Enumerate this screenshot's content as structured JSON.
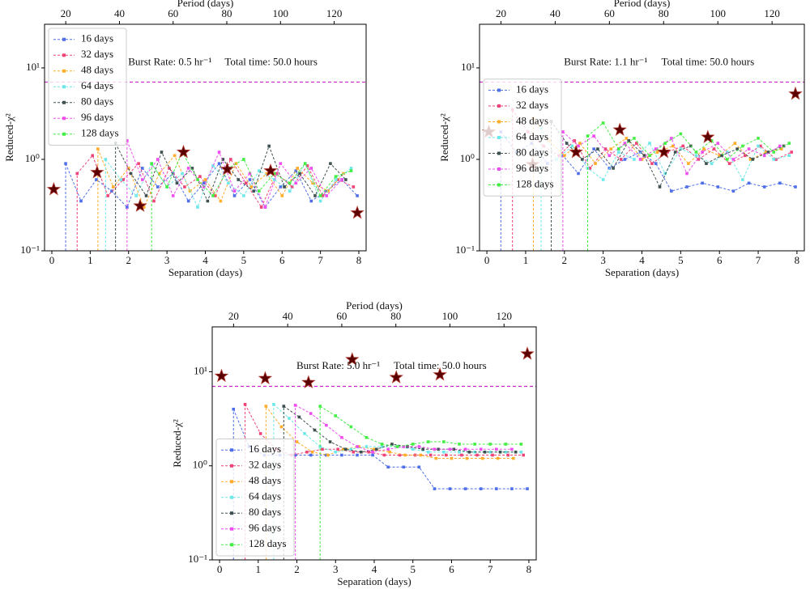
{
  "chart_data": [
    {
      "type": "line",
      "annotations": [
        "Burst Rate: 0.5 hr⁻¹",
        "Total time: 50.0 hours"
      ],
      "xlabel": "Separation (days)",
      "x2label": "Period (days)",
      "ylabel": "Reduced-χ²",
      "xlim": [
        -0.19,
        8.19
      ],
      "xticks": [
        0,
        1,
        2,
        3,
        4,
        5,
        6,
        7,
        8
      ],
      "x2lim": [
        12.1,
        131.9
      ],
      "x2ticks": [
        20,
        40,
        60,
        80,
        100,
        120
      ],
      "ylim": [
        0.1,
        30
      ],
      "yscale": "log",
      "yticks": [
        {
          "value": 0.1,
          "label": "10⁻¹"
        },
        {
          "value": 1,
          "label": "10⁰"
        },
        {
          "value": 10,
          "label": "10¹"
        }
      ],
      "legend": "upper left",
      "reference_line": {
        "value": 7,
        "color": "#cc22cc"
      },
      "markers": {
        "color": "#5a0000",
        "x": [
          0.05,
          1.18,
          2.3,
          3.43,
          4.57,
          5.7,
          7.96
        ],
        "values": [
          0.47,
          0.72,
          0.31,
          1.2,
          0.78,
          0.75,
          0.26
        ]
      },
      "series": [
        {
          "name": "16 days",
          "color": "#4f6fe8",
          "x": [
            0.36,
            0.76,
            1.16,
            1.56,
            1.96,
            2.36,
            2.76,
            3.16,
            3.56,
            3.96,
            4.36,
            4.76,
            5.16,
            5.56,
            5.96,
            6.36,
            6.76,
            7.16,
            7.56,
            7.96
          ],
          "values": [
            0.9,
            0.35,
            0.6,
            0.45,
            0.3,
            0.8,
            0.5,
            0.7,
            0.35,
            0.55,
            0.9,
            0.4,
            0.6,
            0.3,
            0.5,
            0.75,
            0.35,
            0.45,
            0.6,
            0.4
          ]
        },
        {
          "name": "32 days",
          "color": "#ee4477",
          "x": [
            0.66,
            1.06,
            1.46,
            1.86,
            2.26,
            2.66,
            3.06,
            3.46,
            3.86,
            4.26,
            4.66,
            5.06,
            5.46,
            5.86,
            6.26,
            6.66,
            7.06,
            7.46,
            7.86
          ],
          "values": [
            0.7,
            1.1,
            0.4,
            0.6,
            0.9,
            0.35,
            0.8,
            0.5,
            0.65,
            0.4,
            1.0,
            0.55,
            0.3,
            0.7,
            0.5,
            0.85,
            0.4,
            0.6,
            0.5
          ]
        },
        {
          "name": "48 days",
          "color": "#ffad2a",
          "x": [
            1.2,
            1.6,
            2.0,
            2.4,
            2.8,
            3.2,
            3.6,
            4.0,
            4.4,
            4.8,
            5.2,
            5.6,
            6.0,
            6.4,
            6.8,
            7.2,
            7.6
          ],
          "values": [
            1.3,
            0.5,
            0.8,
            0.3,
            0.7,
            1.1,
            0.45,
            0.6,
            0.35,
            0.9,
            0.5,
            0.7,
            0.4,
            0.8,
            0.55,
            0.45,
            0.7
          ]
        },
        {
          "name": "64 days",
          "color": "#6ee8e8",
          "x": [
            1.4,
            1.8,
            2.2,
            2.6,
            3.0,
            3.4,
            3.8,
            4.2,
            4.6,
            5.0,
            5.4,
            5.8,
            6.2,
            6.6,
            7.0,
            7.4,
            7.8
          ],
          "values": [
            1.0,
            0.6,
            0.4,
            0.9,
            0.5,
            0.7,
            0.3,
            0.85,
            0.55,
            0.4,
            0.75,
            0.6,
            0.45,
            0.9,
            0.35,
            0.6,
            0.8
          ]
        },
        {
          "name": "80 days",
          "color": "#3f5050",
          "x": [
            1.66,
            2.06,
            2.46,
            2.86,
            3.26,
            3.66,
            4.06,
            4.46,
            4.86,
            5.26,
            5.66,
            6.06,
            6.46,
            6.86,
            7.26,
            7.66
          ],
          "values": [
            1.5,
            0.7,
            0.4,
            1.2,
            0.55,
            0.8,
            0.35,
            1.0,
            0.6,
            0.45,
            1.4,
            0.5,
            0.7,
            0.4,
            0.9,
            0.6
          ]
        },
        {
          "name": "96 days",
          "color": "#ee4eee",
          "x": [
            1.96,
            2.36,
            2.76,
            3.16,
            3.56,
            3.96,
            4.36,
            4.76,
            5.16,
            5.56,
            5.96,
            6.36,
            6.76,
            7.16,
            7.56
          ],
          "values": [
            1.6,
            0.6,
            1.0,
            0.4,
            0.8,
            0.5,
            1.2,
            0.45,
            0.7,
            0.3,
            0.9,
            0.55,
            0.8,
            0.4,
            0.6
          ]
        },
        {
          "name": "128 days",
          "color": "#44ee44",
          "x": [
            2.6,
            3.0,
            3.4,
            3.8,
            4.2,
            4.6,
            5.0,
            5.4,
            5.8,
            6.2,
            6.6,
            7.0,
            7.4,
            7.8
          ],
          "values": [
            0.9,
            0.5,
            1.2,
            0.6,
            0.4,
            0.8,
            1.0,
            0.45,
            0.7,
            0.55,
            0.9,
            0.4,
            0.65,
            0.75
          ]
        }
      ]
    },
    {
      "type": "line",
      "annotations": [
        "Burst Rate: 1.1 hr⁻¹",
        "Total time: 50.0 hours"
      ],
      "xlabel": "Separation (days)",
      "x2label": "Period (days)",
      "ylabel": "Reduced-χ²",
      "xlim": [
        -0.19,
        8.19
      ],
      "xticks": [
        0,
        1,
        2,
        3,
        4,
        5,
        6,
        7,
        8
      ],
      "x2lim": [
        12.1,
        131.9
      ],
      "x2ticks": [
        20,
        40,
        60,
        80,
        100,
        120
      ],
      "ylim": [
        0.1,
        30
      ],
      "yscale": "log",
      "yticks": [
        {
          "value": 0.1,
          "label": "10⁻¹"
        },
        {
          "value": 1,
          "label": "10⁰"
        },
        {
          "value": 10,
          "label": "10¹"
        }
      ],
      "legend": "center left",
      "reference_line": {
        "value": 7,
        "color": "#cc22cc"
      },
      "markers": {
        "color": "#5a0000",
        "x": [
          0.05,
          1.18,
          2.3,
          3.43,
          4.57,
          5.7,
          7.96
        ],
        "values": [
          2.0,
          0.88,
          1.2,
          2.1,
          1.2,
          1.75,
          5.2
        ]
      },
      "series": [
        {
          "name": "16 days",
          "color": "#4f6fe8",
          "x": [
            0.36,
            0.76,
            1.16,
            1.56,
            1.96,
            2.36,
            2.76,
            3.16,
            3.56,
            3.96,
            4.36,
            4.76,
            5.16,
            5.56,
            5.96,
            6.36,
            6.76,
            7.16,
            7.56,
            7.96
          ],
          "values": [
            2.0,
            1.2,
            1.5,
            0.9,
            1.1,
            0.7,
            1.3,
            0.8,
            1.0,
            1.2,
            0.9,
            0.45,
            0.5,
            0.55,
            0.5,
            0.45,
            0.55,
            0.5,
            0.55,
            0.5
          ]
        },
        {
          "name": "32 days",
          "color": "#ee4477",
          "x": [
            0.66,
            1.06,
            1.46,
            1.86,
            2.26,
            2.66,
            3.06,
            3.46,
            3.86,
            4.26,
            4.66,
            5.06,
            5.46,
            5.86,
            6.26,
            6.66,
            7.06,
            7.46,
            7.86
          ],
          "values": [
            3.5,
            2.0,
            1.4,
            1.1,
            1.6,
            0.8,
            1.3,
            1.0,
            1.5,
            0.9,
            1.2,
            1.4,
            1.0,
            1.3,
            0.9,
            1.1,
            1.4,
            1.0,
            1.2
          ]
        },
        {
          "name": "48 days",
          "color": "#ffad2a",
          "x": [
            1.2,
            1.6,
            2.0,
            2.4,
            2.8,
            3.2,
            3.6,
            4.0,
            4.4,
            4.8,
            5.2,
            5.6,
            6.0,
            6.4,
            6.8,
            7.2,
            7.6
          ],
          "values": [
            2.8,
            1.6,
            1.1,
            1.5,
            0.9,
            1.3,
            1.7,
            1.0,
            1.2,
            1.4,
            0.9,
            1.3,
            1.1,
            1.5,
            1.0,
            1.2,
            1.3
          ]
        },
        {
          "name": "64 days",
          "color": "#6ee8e8",
          "x": [
            1.4,
            1.8,
            2.2,
            2.6,
            3.0,
            3.4,
            3.8,
            4.2,
            4.6,
            5.0,
            5.4,
            5.8,
            6.2,
            6.6,
            7.0,
            7.4,
            7.8
          ],
          "values": [
            2.2,
            1.0,
            1.4,
            0.8,
            0.6,
            1.2,
            1.0,
            1.5,
            0.7,
            1.3,
            1.1,
            0.9,
            1.2,
            0.6,
            1.4,
            1.0,
            1.1
          ]
        },
        {
          "name": "80 days",
          "color": "#3f5050",
          "x": [
            1.66,
            2.06,
            2.46,
            2.86,
            3.26,
            3.66,
            4.06,
            4.46,
            4.86,
            5.26,
            5.66,
            6.06,
            6.46,
            6.86,
            7.26,
            7.66
          ],
          "values": [
            2.6,
            1.5,
            1.0,
            1.3,
            0.8,
            1.6,
            1.1,
            0.5,
            1.2,
            1.4,
            0.9,
            1.1,
            1.3,
            1.0,
            1.2,
            1.4
          ]
        },
        {
          "name": "96 days",
          "color": "#ee4eee",
          "x": [
            1.96,
            2.36,
            2.76,
            3.16,
            3.56,
            3.96,
            4.36,
            4.76,
            5.16,
            5.56,
            5.96,
            6.36,
            6.76,
            7.16,
            7.56
          ],
          "values": [
            2.0,
            1.4,
            1.8,
            1.1,
            1.5,
            1.0,
            1.3,
            1.7,
            0.7,
            1.2,
            1.5,
            1.0,
            1.3,
            1.1,
            1.4
          ]
        },
        {
          "name": "128 days",
          "color": "#44ee44",
          "x": [
            2.6,
            3.0,
            3.4,
            3.8,
            4.2,
            4.6,
            5.0,
            5.4,
            5.8,
            6.2,
            6.6,
            7.0,
            7.4,
            7.8
          ],
          "values": [
            1.8,
            2.5,
            1.3,
            1.7,
            1.1,
            1.5,
            1.9,
            1.2,
            1.6,
            1.0,
            1.4,
            1.7,
            1.2,
            1.5
          ]
        }
      ]
    },
    {
      "type": "line",
      "annotations": [
        "Burst Rate: 5.0 hr⁻¹",
        "Total time: 50.0 hours"
      ],
      "xlabel": "Separation (days)",
      "x2label": "Period (days)",
      "ylabel": "Reduced-χ²",
      "xlim": [
        -0.19,
        8.19
      ],
      "xticks": [
        0,
        1,
        2,
        3,
        4,
        5,
        6,
        7,
        8
      ],
      "x2lim": [
        12.1,
        131.9
      ],
      "x2ticks": [
        20,
        40,
        60,
        80,
        100,
        120
      ],
      "ylim": [
        0.1,
        30
      ],
      "yscale": "log",
      "yticks": [
        {
          "value": 0.1,
          "label": "10⁻¹"
        },
        {
          "value": 1,
          "label": "10⁰"
        },
        {
          "value": 10,
          "label": "10¹"
        }
      ],
      "legend": "lower left",
      "reference_line": {
        "value": 7,
        "color": "#cc22cc"
      },
      "markers": {
        "color": "#5a0000",
        "x": [
          0.05,
          1.18,
          2.3,
          3.43,
          4.57,
          5.7,
          7.96
        ],
        "values": [
          9.0,
          8.5,
          7.7,
          13.5,
          8.7,
          9.3,
          15.5
        ]
      },
      "series": [
        {
          "name": "16 days",
          "color": "#4f6fe8",
          "x": [
            0.36,
            0.76,
            1.16,
            1.56,
            1.96,
            2.36,
            2.76,
            3.16,
            3.56,
            3.96,
            4.36,
            4.76,
            5.16,
            5.56,
            5.96,
            6.36,
            6.76,
            7.16,
            7.56,
            7.96
          ],
          "values": [
            4.0,
            1.6,
            1.3,
            1.3,
            1.3,
            1.3,
            1.3,
            1.3,
            1.3,
            1.3,
            0.97,
            0.97,
            0.97,
            0.57,
            0.57,
            0.57,
            0.57,
            0.57,
            0.57,
            0.57
          ]
        },
        {
          "name": "32 days",
          "color": "#ee4477",
          "x": [
            0.66,
            1.06,
            1.46,
            1.86,
            2.26,
            2.66,
            3.06,
            3.46,
            3.86,
            4.26,
            4.66,
            5.06,
            5.46,
            5.86,
            6.26,
            6.66,
            7.06,
            7.46,
            7.86
          ],
          "values": [
            4.5,
            2.2,
            1.5,
            1.3,
            1.4,
            1.5,
            1.5,
            1.4,
            1.4,
            1.3,
            1.3,
            1.3,
            1.3,
            1.3,
            1.3,
            1.3,
            1.3,
            1.3,
            1.3
          ]
        },
        {
          "name": "48 days",
          "color": "#ffad2a",
          "x": [
            1.2,
            1.6,
            2.0,
            2.4,
            2.8,
            3.2,
            3.6,
            4.0,
            4.4,
            4.8,
            5.2,
            5.6,
            6.0,
            6.4,
            6.8,
            7.2,
            7.6
          ],
          "values": [
            4.3,
            2.6,
            1.8,
            1.4,
            1.3,
            1.5,
            1.6,
            1.5,
            1.4,
            1.3,
            1.3,
            1.2,
            1.2,
            1.2,
            1.2,
            1.2,
            1.2
          ]
        },
        {
          "name": "64 days",
          "color": "#6ee8e8",
          "x": [
            1.4,
            1.8,
            2.2,
            2.6,
            3.0,
            3.4,
            3.8,
            4.2,
            4.6,
            5.0,
            5.4,
            5.8,
            6.2,
            6.6,
            7.0,
            7.4,
            7.8
          ],
          "values": [
            4.5,
            3.2,
            2.2,
            1.6,
            1.4,
            1.5,
            1.6,
            1.6,
            1.6,
            1.5,
            1.4,
            1.4,
            1.4,
            1.4,
            1.4,
            1.4,
            1.4
          ]
        },
        {
          "name": "80 days",
          "color": "#3f5050",
          "x": [
            1.66,
            2.06,
            2.46,
            2.86,
            3.26,
            3.66,
            4.06,
            4.46,
            4.86,
            5.26,
            5.66,
            6.06,
            6.46,
            6.86,
            7.26,
            7.66
          ],
          "values": [
            4.3,
            3.3,
            2.4,
            1.8,
            1.5,
            1.4,
            1.5,
            1.7,
            1.6,
            1.5,
            1.5,
            1.5,
            1.4,
            1.4,
            1.4,
            1.4
          ]
        },
        {
          "name": "96 days",
          "color": "#ee4eee",
          "x": [
            1.96,
            2.36,
            2.76,
            3.16,
            3.56,
            3.96,
            4.36,
            4.76,
            5.16,
            5.56,
            5.96,
            6.36,
            6.76,
            7.16,
            7.56
          ],
          "values": [
            4.4,
            3.6,
            2.7,
            2.0,
            1.6,
            1.4,
            1.5,
            1.6,
            1.6,
            1.5,
            1.5,
            1.5,
            1.5,
            1.5,
            1.5
          ]
        },
        {
          "name": "128 days",
          "color": "#44ee44",
          "x": [
            2.6,
            3.0,
            3.4,
            3.8,
            4.2,
            4.6,
            5.0,
            5.4,
            5.8,
            6.2,
            6.6,
            7.0,
            7.4,
            7.8
          ],
          "values": [
            4.3,
            3.4,
            2.6,
            2.0,
            1.7,
            1.6,
            1.7,
            1.8,
            1.8,
            1.7,
            1.7,
            1.7,
            1.7,
            1.7
          ]
        }
      ]
    }
  ]
}
